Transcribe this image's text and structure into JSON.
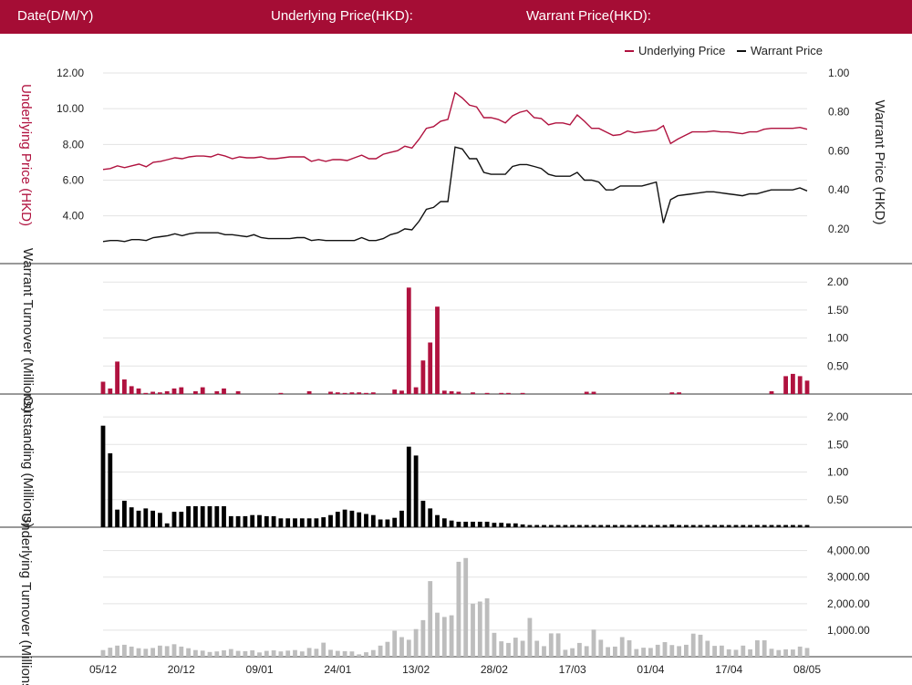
{
  "header": {
    "date_label": "Date(D/M/Y)",
    "underlying_label": "Underlying Price(HKD):",
    "warrant_label": "Warrant Price(HKD):"
  },
  "colors": {
    "header_bg": "#a50d35",
    "underlying": "#b0123f",
    "warrant": "#111111",
    "turnover_bar": "#b0123f",
    "outstanding_bar": "#000000",
    "underlying_turnover_bar": "#bdbdbd"
  },
  "chart_data": [
    {
      "type": "line",
      "legend": [
        "Underlying Price",
        "Warrant Price"
      ],
      "legend_position": "top-right",
      "ylabel_left": "Underlying Price (HKD)",
      "ylabel_right": "Warrant  Price (HKD)",
      "y_ticks_left": [
        "4.00",
        "6.00",
        "8.00",
        "10.00",
        "12.00"
      ],
      "y_ticks_right": [
        "0.20",
        "0.40",
        "0.60",
        "0.80",
        "1.00"
      ],
      "ylim_left": [
        2.4,
        12.0
      ],
      "ylim_right": [
        0.12,
        1.0
      ],
      "series": [
        {
          "name": "Underlying Price",
          "axis": "left",
          "values": [
            6.6,
            6.65,
            6.8,
            6.7,
            6.8,
            6.9,
            6.75,
            7.0,
            7.05,
            7.15,
            7.25,
            7.2,
            7.3,
            7.35,
            7.35,
            7.3,
            7.45,
            7.35,
            7.2,
            7.3,
            7.25,
            7.25,
            7.3,
            7.2,
            7.2,
            7.25,
            7.3,
            7.3,
            7.3,
            7.05,
            7.15,
            7.05,
            7.15,
            7.15,
            7.1,
            7.25,
            7.4,
            7.2,
            7.2,
            7.45,
            7.55,
            7.65,
            7.9,
            7.8,
            8.3,
            8.9,
            9.0,
            9.3,
            9.4,
            10.9,
            10.6,
            10.2,
            10.1,
            9.5,
            9.5,
            9.4,
            9.2,
            9.6,
            9.8,
            9.9,
            9.5,
            9.45,
            9.1,
            9.2,
            9.2,
            9.1,
            9.65,
            9.3,
            8.9,
            8.9,
            8.7,
            8.5,
            8.55,
            8.75,
            8.65,
            8.7,
            8.75,
            8.8,
            9.05,
            8.05,
            8.3,
            8.5,
            8.7,
            8.7,
            8.7,
            8.75,
            8.7,
            8.7,
            8.65,
            8.6,
            8.7,
            8.7,
            8.85,
            8.9,
            8.9,
            8.9,
            8.9,
            8.95,
            8.85
          ]
        },
        {
          "name": "Warrant Price",
          "axis": "right",
          "values": [
            0.135,
            0.14,
            0.14,
            0.135,
            0.145,
            0.145,
            0.14,
            0.155,
            0.16,
            0.165,
            0.175,
            0.165,
            0.175,
            0.18,
            0.18,
            0.18,
            0.18,
            0.17,
            0.17,
            0.165,
            0.16,
            0.17,
            0.155,
            0.15,
            0.15,
            0.15,
            0.15,
            0.155,
            0.155,
            0.14,
            0.145,
            0.14,
            0.14,
            0.14,
            0.14,
            0.14,
            0.155,
            0.14,
            0.14,
            0.15,
            0.17,
            0.18,
            0.2,
            0.195,
            0.24,
            0.3,
            0.31,
            0.34,
            0.34,
            0.62,
            0.61,
            0.56,
            0.56,
            0.49,
            0.48,
            0.48,
            0.48,
            0.52,
            0.53,
            0.53,
            0.52,
            0.51,
            0.48,
            0.47,
            0.47,
            0.47,
            0.49,
            0.45,
            0.45,
            0.44,
            0.4,
            0.4,
            0.42,
            0.42,
            0.42,
            0.42,
            0.43,
            0.44,
            0.23,
            0.35,
            0.37,
            0.375,
            0.38,
            0.385,
            0.39,
            0.39,
            0.385,
            0.38,
            0.375,
            0.37,
            0.38,
            0.38,
            0.39,
            0.4,
            0.4,
            0.4,
            0.4,
            0.41,
            0.395
          ]
        }
      ]
    },
    {
      "type": "bar",
      "ylabel": "Warrant  Turnover (Millions)",
      "y_ticks": [
        "0.50",
        "1.00",
        "1.50",
        "2.00"
      ],
      "ylim": [
        0,
        2.15
      ],
      "values": [
        0.22,
        0.1,
        0.58,
        0.26,
        0.14,
        0.1,
        0.02,
        0.04,
        0.03,
        0.05,
        0.1,
        0.12,
        0,
        0.05,
        0.12,
        0,
        0.05,
        0.1,
        0,
        0.05,
        0,
        0,
        0,
        0,
        0,
        0.02,
        0,
        0,
        0,
        0.05,
        0,
        0,
        0.04,
        0.03,
        0.02,
        0.03,
        0.03,
        0.02,
        0.03,
        0,
        0,
        0.08,
        0.06,
        1.9,
        0.12,
        0.6,
        0.92,
        1.56,
        0.06,
        0.05,
        0.04,
        0,
        0.03,
        0,
        0.02,
        0,
        0.02,
        0.02,
        0,
        0.02,
        0,
        0,
        0,
        0,
        0,
        0,
        0,
        0,
        0.04,
        0.04,
        0,
        0,
        0,
        0,
        0,
        0,
        0,
        0,
        0,
        0,
        0.03,
        0.03,
        0,
        0,
        0,
        0,
        0,
        0,
        0,
        0,
        0,
        0,
        0,
        0,
        0.05,
        0,
        0.32,
        0.36,
        0.32,
        0.24
      ]
    },
    {
      "type": "bar",
      "ylabel": "Outstanding (Millions)",
      "y_ticks": [
        "0.50",
        "1.00",
        "1.50",
        "2.00"
      ],
      "ylim": [
        0,
        2.15
      ],
      "values": [
        1.84,
        1.34,
        0.32,
        0.48,
        0.36,
        0.3,
        0.34,
        0.3,
        0.26,
        0.07,
        0.28,
        0.28,
        0.38,
        0.38,
        0.38,
        0.38,
        0.38,
        0.38,
        0.2,
        0.2,
        0.2,
        0.22,
        0.22,
        0.2,
        0.2,
        0.16,
        0.16,
        0.16,
        0.16,
        0.16,
        0.16,
        0.18,
        0.22,
        0.28,
        0.32,
        0.3,
        0.27,
        0.24,
        0.22,
        0.14,
        0.14,
        0.17,
        0.3,
        1.46,
        1.3,
        0.48,
        0.34,
        0.22,
        0.16,
        0.12,
        0.1,
        0.1,
        0.1,
        0.1,
        0.1,
        0.08,
        0.08,
        0.07,
        0.07,
        0.05,
        0.04,
        0.04,
        0.04,
        0.04,
        0.04,
        0.04,
        0.04,
        0.04,
        0.04,
        0.04,
        0.04,
        0.04,
        0.04,
        0.04,
        0.04,
        0.04,
        0.04,
        0.04,
        0.04,
        0.04,
        0.05,
        0.04,
        0.04,
        0.04,
        0.04,
        0.04,
        0.04,
        0.04,
        0.04,
        0.04,
        0.04,
        0.04,
        0.04,
        0.04,
        0.04,
        0.04,
        0.04,
        0.04,
        0.04,
        0.04
      ]
    },
    {
      "type": "bar",
      "ylabel": "Underlying Turnover (Millions)",
      "y_ticks": [
        "1,000.00",
        "2,000.00",
        "3,000.00",
        "4,000.00"
      ],
      "ylim": [
        0,
        4400
      ],
      "x_ticks": [
        "05/12",
        "20/12",
        "09/01",
        "24/01",
        "13/02",
        "28/02",
        "17/03",
        "01/04",
        "17/04",
        "08/05"
      ],
      "values": [
        250,
        340,
        420,
        450,
        380,
        320,
        300,
        330,
        420,
        400,
        470,
        380,
        320,
        250,
        230,
        180,
        200,
        240,
        290,
        220,
        210,
        240,
        160,
        220,
        240,
        200,
        230,
        250,
        200,
        330,
        300,
        530,
        260,
        220,
        210,
        200,
        90,
        170,
        250,
        420,
        560,
        980,
        740,
        640,
        1040,
        1380,
        2850,
        1660,
        1500,
        1560,
        3580,
        3720,
        2000,
        2080,
        2200,
        900,
        580,
        520,
        720,
        600,
        1460,
        600,
        400,
        880,
        880,
        260,
        320,
        520,
        400,
        1020,
        640,
        360,
        380,
        740,
        620,
        290,
        340,
        330,
        450,
        550,
        440,
        400,
        450,
        870,
        830,
        600,
        410,
        420,
        280,
        260,
        420,
        280,
        620,
        620,
        300,
        250,
        280,
        270,
        380,
        330
      ]
    }
  ]
}
